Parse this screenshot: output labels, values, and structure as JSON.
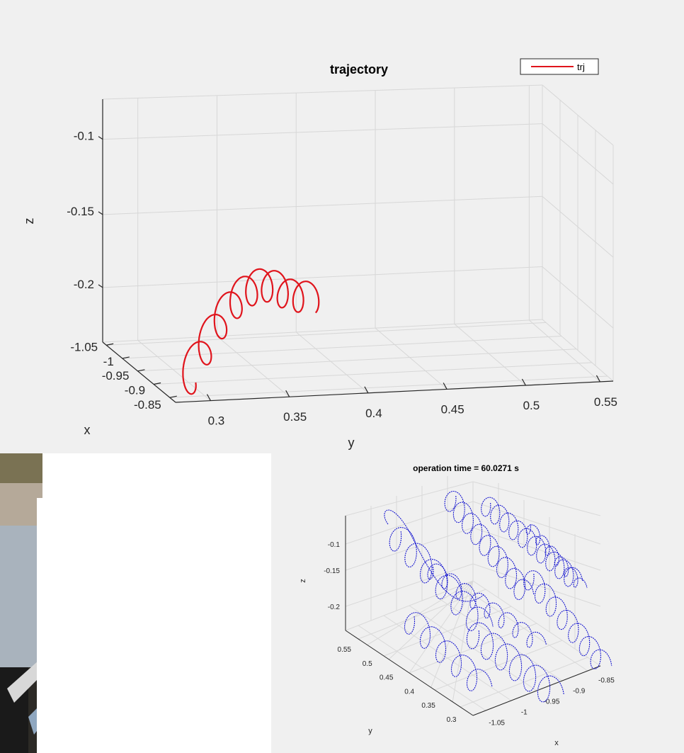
{
  "main_plot": {
    "title": "trajectory",
    "legend": "trj",
    "xlabel": "x",
    "ylabel": "y",
    "zlabel": "z",
    "x_ticks": [
      "-1.05",
      "-1",
      "-0.95",
      "-0.9",
      "-0.85"
    ],
    "y_ticks": [
      "0.3",
      "0.35",
      "0.4",
      "0.45",
      "0.5",
      "0.55"
    ],
    "z_ticks": [
      "-0.1",
      "-0.15",
      "-0.2"
    ],
    "line_color": "#e0141c"
  },
  "small_plot": {
    "title": "operation time = 60.0271 s",
    "xlabel": "x",
    "ylabel": "y",
    "zlabel": "z",
    "x_ticks": [
      "-1.05",
      "-1",
      "-0.95",
      "-0.9",
      "-0.85"
    ],
    "y_ticks": [
      "0.3",
      "0.35",
      "0.4",
      "0.45",
      "0.5",
      "0.55"
    ],
    "z_ticks": [
      "-0.1",
      "-0.15",
      "-0.2"
    ],
    "line_color": "#1a1ad0"
  },
  "chart_data": [
    {
      "type": "line",
      "title": "trajectory",
      "xlabel": "x",
      "ylabel": "y",
      "zlabel": "z",
      "xlim": [
        -1.05,
        -0.85
      ],
      "ylim": [
        0.28,
        0.58
      ],
      "zlim": [
        -0.25,
        -0.08
      ],
      "grid": true,
      "legend_position": "top-right",
      "series": [
        {
          "name": "trj",
          "color": "#e0141c",
          "x": [
            -1.0,
            -0.98,
            -0.96,
            -0.95,
            -0.94,
            -0.93,
            -0.92,
            -0.92
          ],
          "y": [
            0.29,
            0.3,
            0.31,
            0.32,
            0.34,
            0.36,
            0.38,
            0.4
          ],
          "z": [
            -0.225,
            -0.215,
            -0.205,
            -0.198,
            -0.19,
            -0.188,
            -0.19,
            -0.2
          ]
        }
      ]
    },
    {
      "type": "line",
      "title": "operation time = 60.0271 s",
      "xlabel": "x",
      "ylabel": "y",
      "zlabel": "z",
      "xlim": [
        -1.05,
        -0.85
      ],
      "ylim": [
        0.28,
        0.58
      ],
      "zlim": [
        -0.25,
        -0.08
      ],
      "grid": true,
      "series": [
        {
          "color": "#1a1ad0",
          "x": [
            -1.05,
            -1.0,
            -0.95,
            -0.9,
            -0.85
          ],
          "y": [
            0.55,
            0.45,
            0.4,
            0.35,
            0.3
          ],
          "z": [
            -0.12,
            -0.15,
            -0.18,
            -0.2,
            -0.22
          ]
        }
      ]
    }
  ]
}
